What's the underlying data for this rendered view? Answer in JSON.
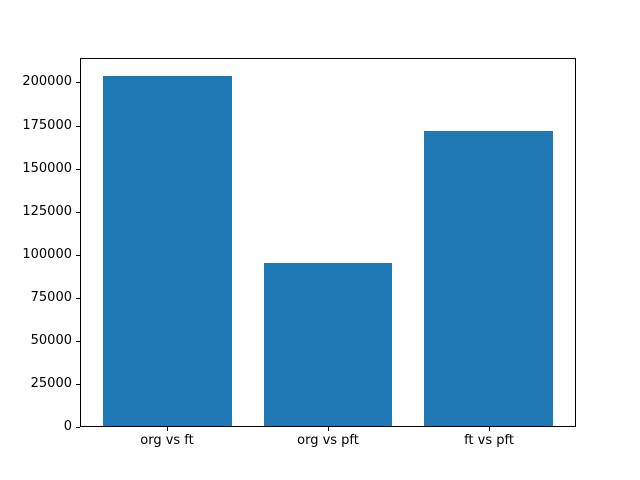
{
  "figure": {
    "background": "#ffffff",
    "frame_color": "#000000",
    "text_color": "#000000"
  },
  "chart_data": {
    "type": "bar",
    "title": "",
    "xlabel": "",
    "ylabel": "",
    "categories": [
      "org vs ft",
      "org vs pft",
      "ft vs pft"
    ],
    "values": [
      204000,
      95000,
      172000
    ],
    "bar_color": "#1f77b4",
    "bar_width_fraction": 0.8,
    "yticks": [
      0,
      25000,
      50000,
      75000,
      100000,
      125000,
      150000,
      175000,
      200000
    ],
    "ylim": [
      0,
      214200
    ],
    "xlim": [
      -0.54,
      2.54
    ],
    "grid": false,
    "legend": "none"
  }
}
